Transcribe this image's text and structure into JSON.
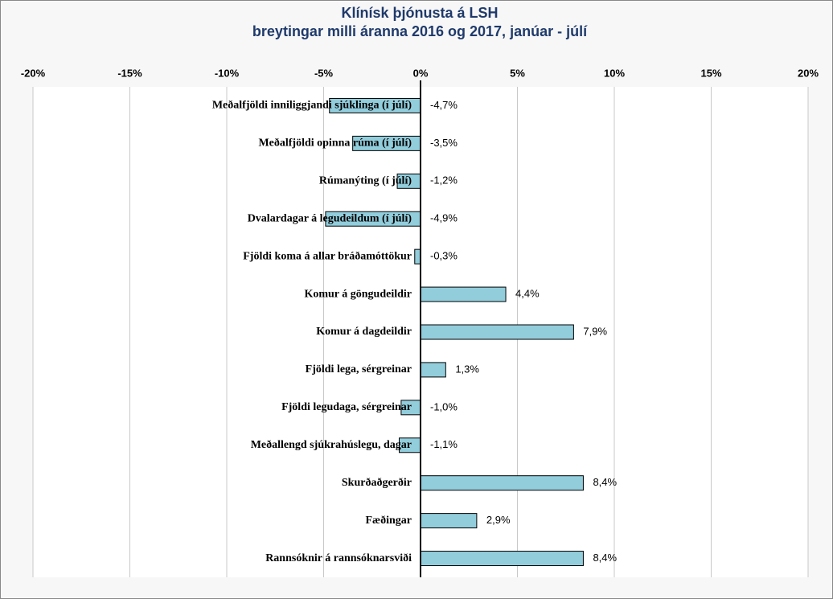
{
  "chart_data": {
    "type": "bar",
    "orientation": "horizontal",
    "title": "Klínísk þjónusta á LSH",
    "subtitle": "breytingar milli áranna 2016 og 2017,  janúar - júlí",
    "categories": [
      "Meðalfjöldi inniliggjandi sjúklinga (í júlí)",
      "Meðalfjöldi opinna rúma (í júlí)",
      "Rúmanýting (í júlí)",
      "Dvalardagar á legudeildum (í júlí)",
      "Fjöldi koma á allar bráðamóttökur",
      "Komur á göngudeildir",
      "Komur á dagdeildir",
      "Fjöldi lega, sérgreinar",
      "Fjöldi legudaga, sérgreinar",
      "Meðallengd sjúkrahúslegu, dagar",
      "Skurðaðgerðir",
      "Fæðingar",
      "Rannsóknir á rannsóknarsviði"
    ],
    "values": [
      -4.7,
      -3.5,
      -1.2,
      -4.9,
      -0.3,
      4.4,
      7.9,
      1.3,
      -1.0,
      -1.1,
      8.4,
      2.9,
      8.4
    ],
    "value_labels": [
      "-4,7%",
      "-3,5%",
      "-1,2%",
      "-4,9%",
      "-0,3%",
      "4,4%",
      "7,9%",
      "1,3%",
      "-1,0%",
      "-1,1%",
      "8,4%",
      "2,9%",
      "8,4%"
    ],
    "color": "#92cddc",
    "xlim": [
      -20,
      20
    ],
    "xticks": [
      {
        "value": -20,
        "label": "-20%"
      },
      {
        "value": -15,
        "label": "-15%"
      },
      {
        "value": -10,
        "label": "-10%"
      },
      {
        "value": -5,
        "label": "-5%"
      },
      {
        "value": 0,
        "label": "0%"
      },
      {
        "value": 5,
        "label": "5%"
      },
      {
        "value": 10,
        "label": "10%"
      },
      {
        "value": 15,
        "label": "15%"
      },
      {
        "value": 20,
        "label": "20%"
      }
    ],
    "grid": true
  }
}
